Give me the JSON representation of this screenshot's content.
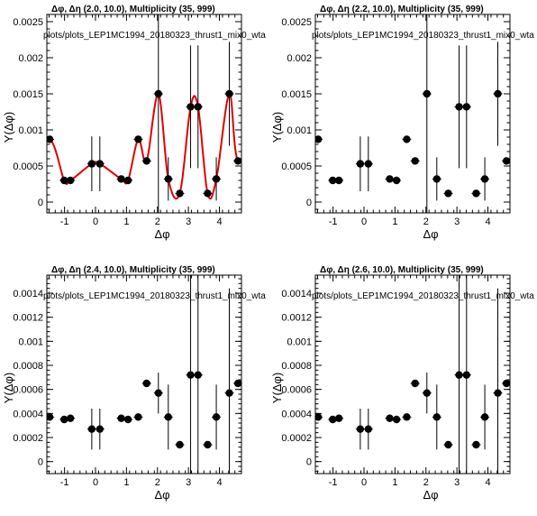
{
  "chart_data": [
    {
      "type": "scatter",
      "title": "Δφ, Δη (2.0, 10.0), Multiplicity (35, 999)",
      "path_label": "plots/plots_LEP1MC1994_20180323_thrust1_mix0_wta",
      "xlabel": "Δφ",
      "ylabel": "Y(Δφ)",
      "xlim": [
        -1.5708,
        4.7124
      ],
      "ylim": [
        -0.00015,
        0.0026
      ],
      "xticks": [
        -1,
        0,
        1,
        2,
        3,
        4
      ],
      "yticks": [
        0,
        0.0005,
        0.001,
        0.0015,
        0.002,
        0.0025
      ],
      "ytick_labels": [
        "0",
        "0.0005",
        "0.001",
        "0.0015",
        "0.002",
        "0.0025"
      ],
      "fit": true,
      "fit_color": "#e00000",
      "series": [
        {
          "x": [
            -1.48,
            -1.01,
            -0.81,
            -0.12,
            0.14,
            0.83,
            1.05,
            1.38,
            1.65,
            2.03,
            2.35,
            2.72,
            3.07,
            3.31,
            3.62,
            3.9,
            4.32,
            4.6
          ],
          "y": [
            0.00087,
            0.0003,
            0.0003,
            0.00053,
            0.00053,
            0.00032,
            0.0003,
            0.00087,
            0.00057,
            0.0015,
            0.00032,
            0.00012,
            0.00132,
            0.00132,
            0.00012,
            0.00032,
            0.0015,
            0.00057
          ],
          "err": [
            5e-05,
            5e-05,
            5e-05,
            0.00038,
            0.00038,
            5e-05,
            5e-05,
            5e-05,
            5e-05,
            0.0021,
            0.0003,
            5e-05,
            0.00085,
            0.00085,
            5e-05,
            0.0003,
            0.00072,
            5e-05
          ]
        }
      ]
    },
    {
      "type": "scatter",
      "title": "Δφ, Δη (2.2, 10.0), Multiplicity (35, 999)",
      "path_label": "plots/plots_LEP1MC1994_20180323_thrust1_mix0_wta",
      "xlabel": "Δφ",
      "ylabel": "Y(Δφ)",
      "xlim": [
        -1.5708,
        4.7124
      ],
      "ylim": [
        -0.00015,
        0.0026
      ],
      "xticks": [
        -1,
        0,
        1,
        2,
        3,
        4
      ],
      "yticks": [
        0,
        0.0005,
        0.001,
        0.0015,
        0.002,
        0.0025
      ],
      "ytick_labels": [
        "0",
        "0.0005",
        "0.001",
        "0.0015",
        "0.002",
        "0.0025"
      ],
      "fit": false,
      "series": [
        {
          "x": [
            -1.48,
            -1.01,
            -0.81,
            -0.12,
            0.14,
            0.83,
            1.05,
            1.38,
            1.65,
            2.03,
            2.35,
            2.72,
            3.07,
            3.31,
            3.62,
            3.9,
            4.32,
            4.6
          ],
          "y": [
            0.00087,
            0.0003,
            0.0003,
            0.00053,
            0.00053,
            0.00032,
            0.0003,
            0.00087,
            0.00057,
            0.0015,
            0.00032,
            0.00012,
            0.00132,
            0.00132,
            0.00012,
            0.00032,
            0.0015,
            0.00057
          ],
          "err": [
            5e-05,
            5e-05,
            5e-05,
            0.00038,
            0.00038,
            5e-05,
            5e-05,
            5e-05,
            5e-05,
            0.0021,
            0.0003,
            5e-05,
            0.00085,
            0.00085,
            5e-05,
            0.0003,
            0.00072,
            5e-05
          ]
        }
      ]
    },
    {
      "type": "scatter",
      "title": "Δφ, Δη (2.4, 10.0), Multiplicity (35, 999)",
      "path_label": "plots/plots_LEP1MC1994_20180323_thrust1_mix0_wta",
      "xlabel": "Δφ",
      "ylabel": "Y(Δφ)",
      "xlim": [
        -1.5708,
        4.7124
      ],
      "ylim": [
        -0.0001,
        0.00155
      ],
      "xticks": [
        -1,
        0,
        1,
        2,
        3,
        4
      ],
      "yticks": [
        0,
        0.0002,
        0.0004,
        0.0006,
        0.0008,
        0.001,
        0.0012,
        0.0014
      ],
      "ytick_labels": [
        "0",
        "0.0002",
        "0.0004",
        "0.0006",
        "0.0008",
        "0.001",
        "0.0012",
        "0.0014"
      ],
      "fit": false,
      "series": [
        {
          "x": [
            -1.48,
            -1.01,
            -0.81,
            -0.12,
            0.14,
            0.83,
            1.05,
            1.38,
            1.65,
            2.03,
            2.35,
            2.72,
            3.07,
            3.31,
            3.62,
            3.9,
            4.32,
            4.6
          ],
          "y": [
            0.00037,
            0.00035,
            0.00036,
            0.00027,
            0.00027,
            0.00036,
            0.00035,
            0.00037,
            0.00065,
            0.00057,
            0.00037,
            0.00014,
            0.00072,
            0.00072,
            0.00014,
            0.00037,
            0.00057,
            0.00065
          ],
          "err": [
            3e-05,
            3e-05,
            3e-05,
            0.00017,
            0.00017,
            3e-05,
            3e-05,
            3e-05,
            3e-05,
            0.00017,
            0.00027,
            3e-05,
            0.00095,
            0.00095,
            3e-05,
            0.00027,
            0.00087,
            3e-05
          ]
        }
      ]
    },
    {
      "type": "scatter",
      "title": "Δφ, Δη (2.6, 10.0), Multiplicity (35, 999)",
      "path_label": "plots/plots_LEP1MC1994_20180323_thrust1_mix0_wta",
      "xlabel": "Δφ",
      "ylabel": "Y(Δφ)",
      "xlim": [
        -1.5708,
        4.7124
      ],
      "ylim": [
        -0.0001,
        0.00155
      ],
      "xticks": [
        -1,
        0,
        1,
        2,
        3,
        4
      ],
      "yticks": [
        0,
        0.0002,
        0.0004,
        0.0006,
        0.0008,
        0.001,
        0.0012,
        0.0014
      ],
      "ytick_labels": [
        "0",
        "0.0002",
        "0.0004",
        "0.0006",
        "0.0008",
        "0.001",
        "0.0012",
        "0.0014"
      ],
      "fit": false,
      "series": [
        {
          "x": [
            -1.48,
            -1.01,
            -0.81,
            -0.12,
            0.14,
            0.83,
            1.05,
            1.38,
            1.65,
            2.03,
            2.35,
            2.72,
            3.07,
            3.31,
            3.62,
            3.9,
            4.32,
            4.6
          ],
          "y": [
            0.00037,
            0.00035,
            0.00036,
            0.00027,
            0.00027,
            0.00036,
            0.00035,
            0.00037,
            0.00065,
            0.00057,
            0.00037,
            0.00014,
            0.00072,
            0.00072,
            0.00014,
            0.00037,
            0.00057,
            0.00065
          ],
          "err": [
            3e-05,
            3e-05,
            3e-05,
            0.00017,
            0.00017,
            3e-05,
            3e-05,
            3e-05,
            3e-05,
            0.00017,
            0.00027,
            3e-05,
            0.00095,
            0.00095,
            3e-05,
            0.00027,
            0.00087,
            3e-05
          ]
        }
      ]
    }
  ]
}
